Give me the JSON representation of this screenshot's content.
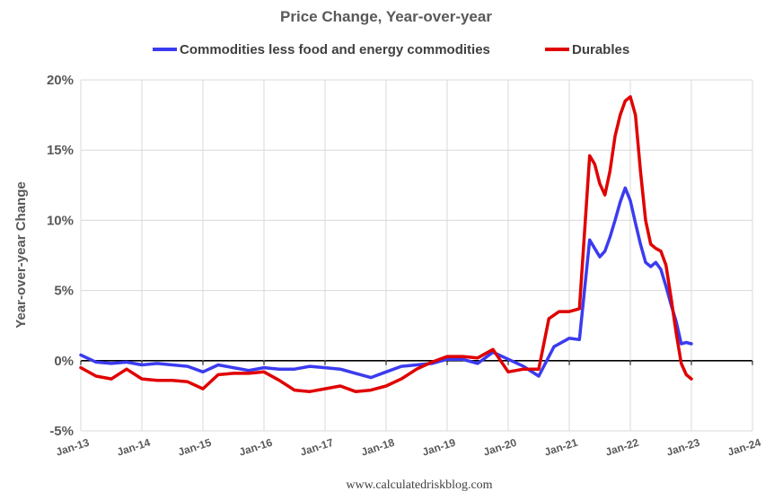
{
  "chart_data": {
    "type": "line",
    "title": "Price Change, Year-over-year",
    "ylabel": "Year-over-year Change",
    "xlabel": "",
    "source": "www.calculatedriskblog.com",
    "ylim": [
      -5,
      20
    ],
    "yticks": [
      -5,
      0,
      5,
      10,
      15,
      20
    ],
    "ytick_labels": [
      "-5%",
      "0%",
      "5%",
      "10%",
      "15%",
      "20%"
    ],
    "xlim": [
      "2013-01",
      "2024-01"
    ],
    "xtick_labels": [
      "Jan-13",
      "Jan-14",
      "Jan-15",
      "Jan-16",
      "Jan-17",
      "Jan-18",
      "Jan-19",
      "Jan-20",
      "Jan-21",
      "Jan-22",
      "Jan-23",
      "Jan-24"
    ],
    "grid": true,
    "legend_position": "top",
    "series": [
      {
        "name": "Commodities less food and energy commodities",
        "color": "#3b3bf0",
        "x": [
          "2013-01",
          "2013-04",
          "2013-07",
          "2013-10",
          "2014-01",
          "2014-04",
          "2014-07",
          "2014-10",
          "2015-01",
          "2015-04",
          "2015-07",
          "2015-10",
          "2016-01",
          "2016-04",
          "2016-07",
          "2016-10",
          "2017-01",
          "2017-04",
          "2017-07",
          "2017-10",
          "2018-01",
          "2018-04",
          "2018-07",
          "2018-10",
          "2019-01",
          "2019-04",
          "2019-07",
          "2019-10",
          "2020-01",
          "2020-04",
          "2020-07",
          "2020-10",
          "2021-01",
          "2021-03",
          "2021-05",
          "2021-06",
          "2021-07",
          "2021-08",
          "2021-09",
          "2021-10",
          "2021-11",
          "2021-12",
          "2022-01",
          "2022-02",
          "2022-03",
          "2022-04",
          "2022-05",
          "2022-06",
          "2022-07",
          "2022-08",
          "2022-09",
          "2022-10",
          "2022-11",
          "2022-12",
          "2023-01"
        ],
        "values": [
          0.4,
          -0.1,
          -0.2,
          -0.1,
          -0.3,
          -0.2,
          -0.3,
          -0.4,
          -0.8,
          -0.3,
          -0.5,
          -0.7,
          -0.5,
          -0.6,
          -0.6,
          -0.4,
          -0.5,
          -0.6,
          -0.9,
          -1.2,
          -0.8,
          -0.4,
          -0.3,
          -0.2,
          0.1,
          0.1,
          -0.2,
          0.6,
          0.1,
          -0.4,
          -1.1,
          1.0,
          1.6,
          1.5,
          8.6,
          8.0,
          7.4,
          7.8,
          8.8,
          10.0,
          11.3,
          12.3,
          11.4,
          9.8,
          8.3,
          7.0,
          6.7,
          7.0,
          6.5,
          5.3,
          4.0,
          2.8,
          1.2,
          1.3,
          1.2
        ]
      },
      {
        "name": "Durables",
        "color": "#e00000",
        "x": [
          "2013-01",
          "2013-04",
          "2013-07",
          "2013-10",
          "2014-01",
          "2014-04",
          "2014-07",
          "2014-10",
          "2015-01",
          "2015-04",
          "2015-07",
          "2015-10",
          "2016-01",
          "2016-04",
          "2016-07",
          "2016-10",
          "2017-01",
          "2017-04",
          "2017-07",
          "2017-10",
          "2018-01",
          "2018-04",
          "2018-07",
          "2018-10",
          "2019-01",
          "2019-04",
          "2019-07",
          "2019-10",
          "2020-01",
          "2020-04",
          "2020-07",
          "2020-09",
          "2020-11",
          "2021-01",
          "2021-03",
          "2021-05",
          "2021-06",
          "2021-07",
          "2021-08",
          "2021-09",
          "2021-10",
          "2021-11",
          "2021-12",
          "2022-01",
          "2022-02",
          "2022-03",
          "2022-04",
          "2022-05",
          "2022-06",
          "2022-07",
          "2022-08",
          "2022-09",
          "2022-10",
          "2022-11",
          "2022-12",
          "2023-01"
        ],
        "values": [
          -0.5,
          -1.1,
          -1.3,
          -0.6,
          -1.3,
          -1.4,
          -1.4,
          -1.5,
          -2.0,
          -1.0,
          -0.9,
          -0.9,
          -0.8,
          -1.4,
          -2.1,
          -2.2,
          -2.0,
          -1.8,
          -2.2,
          -2.1,
          -1.8,
          -1.3,
          -0.6,
          -0.1,
          0.3,
          0.3,
          0.2,
          0.8,
          -0.8,
          -0.6,
          -0.6,
          3.0,
          3.5,
          3.5,
          3.7,
          14.6,
          14.0,
          12.6,
          11.8,
          13.5,
          16.0,
          17.5,
          18.5,
          18.8,
          17.5,
          13.5,
          10.0,
          8.3,
          8.0,
          7.8,
          6.8,
          4.5,
          2.0,
          -0.2,
          -1.0,
          -1.3
        ]
      }
    ]
  }
}
